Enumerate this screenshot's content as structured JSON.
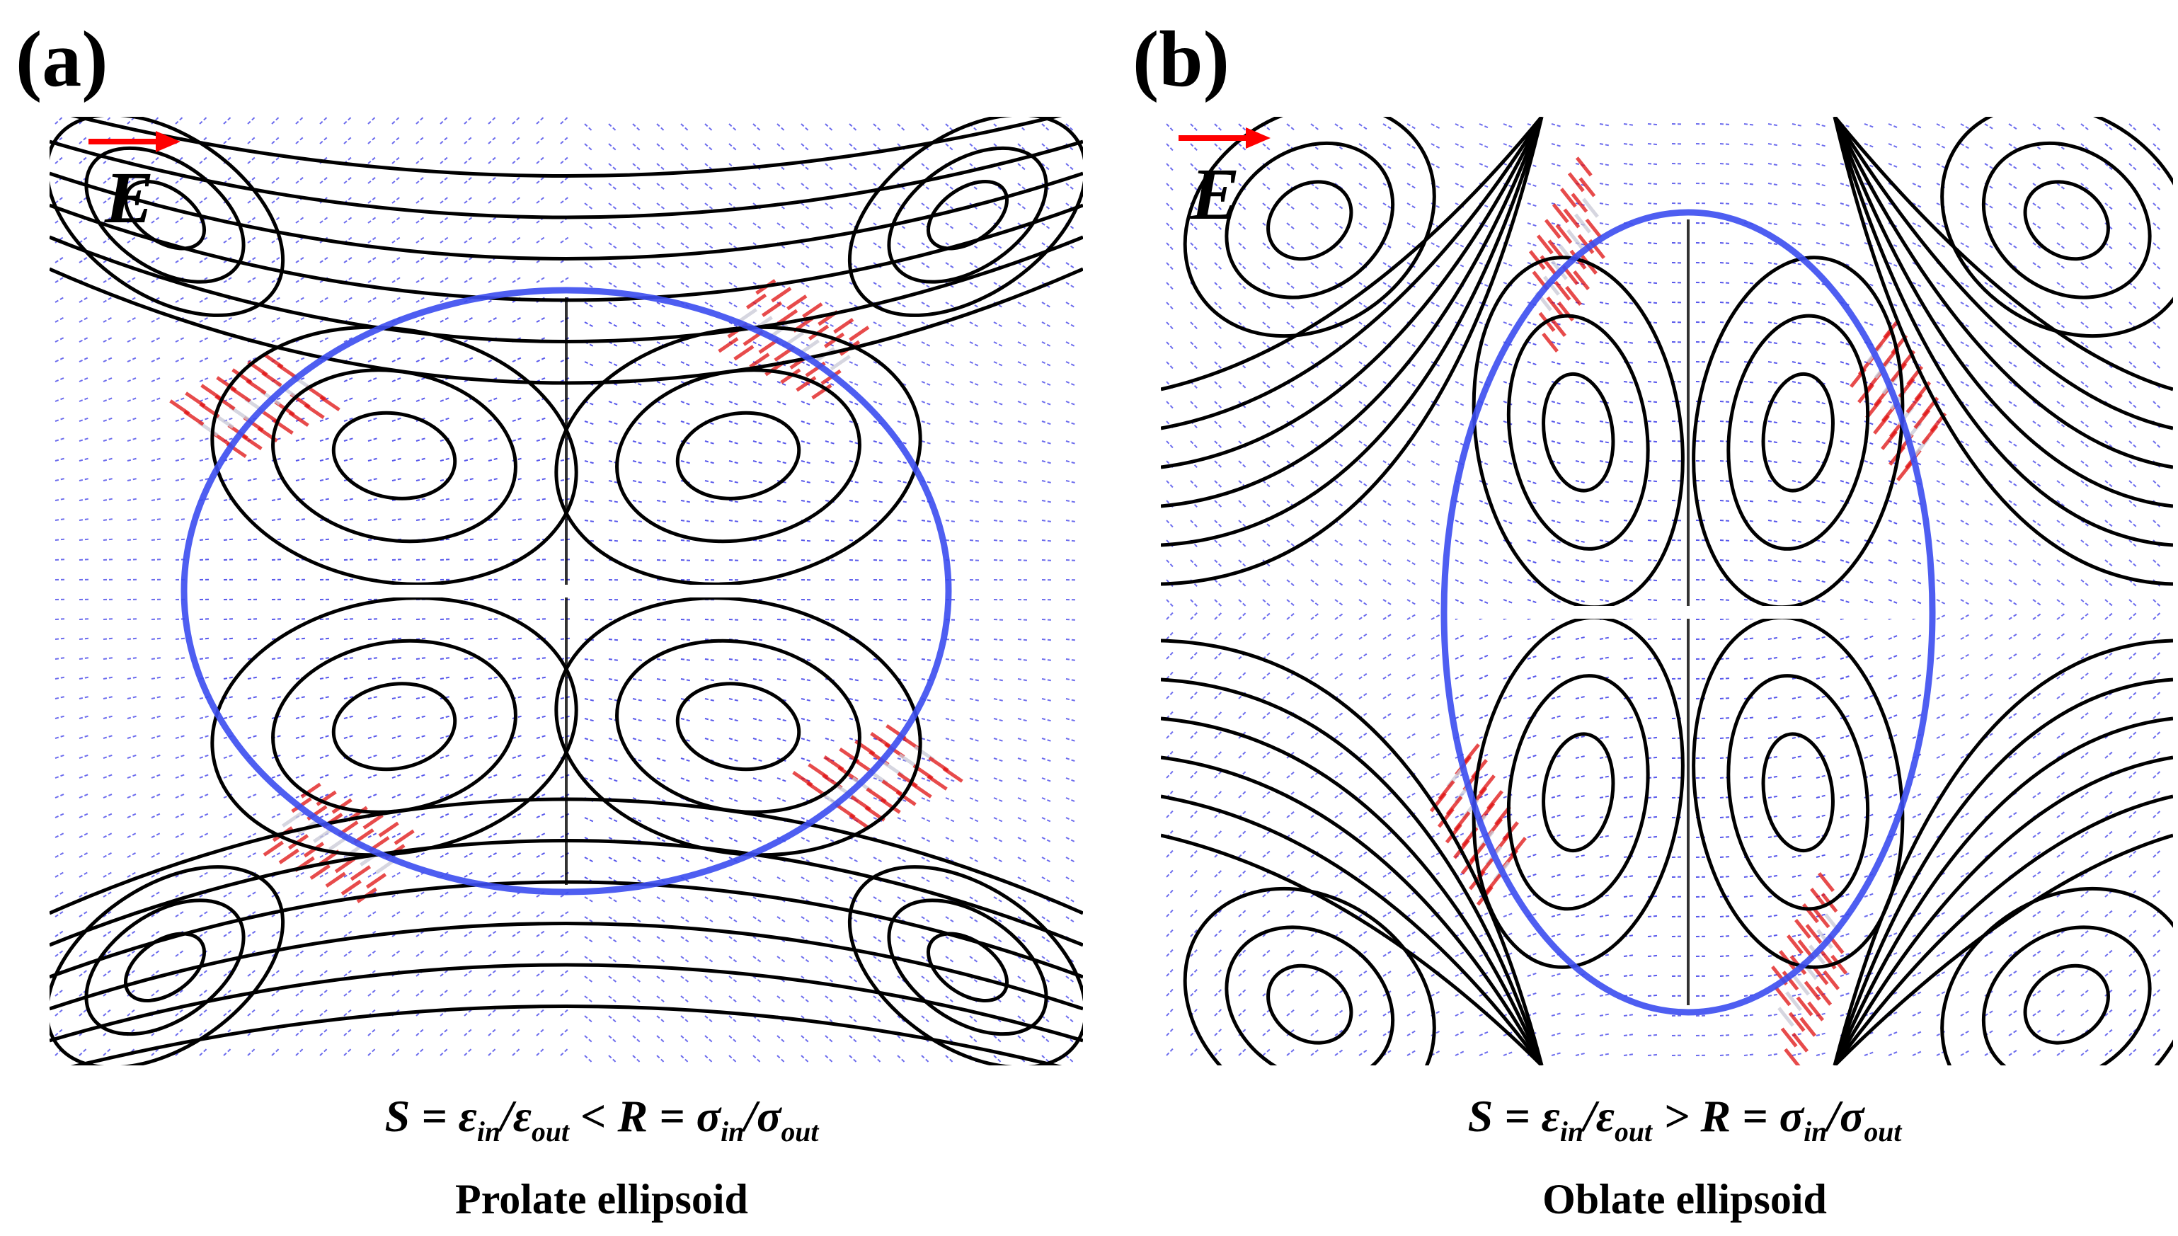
{
  "panels": [
    {
      "id": "a",
      "letter": "(a)",
      "field_label": "E",
      "formula": {
        "S": "S",
        "eq1": "=",
        "eps": "ε",
        "in": "in",
        "slash": "/",
        "out": "out",
        "rel": "<",
        "R": "R",
        "eq2": "=",
        "sigma": "σ"
      },
      "caption": "Prolate ellipsoid"
    },
    {
      "id": "b",
      "letter": "(b)",
      "field_label": "E",
      "formula": {
        "S": "S",
        "eq1": "=",
        "eps": "ε",
        "in": "in",
        "slash": "/",
        "out": "out",
        "rel": ">",
        "R": "R",
        "eq2": "=",
        "sigma": "σ"
      },
      "caption": "Oblate ellipsoid"
    }
  ],
  "colors": {
    "streamline": "#000000",
    "vector_field": "#3a3ae8",
    "high_velocity_vectors": "#e01010",
    "interface": "#3b4cf0",
    "field_arrow": "#ff0000"
  },
  "icons": [
    "electric-field-arrow-icon"
  ]
}
